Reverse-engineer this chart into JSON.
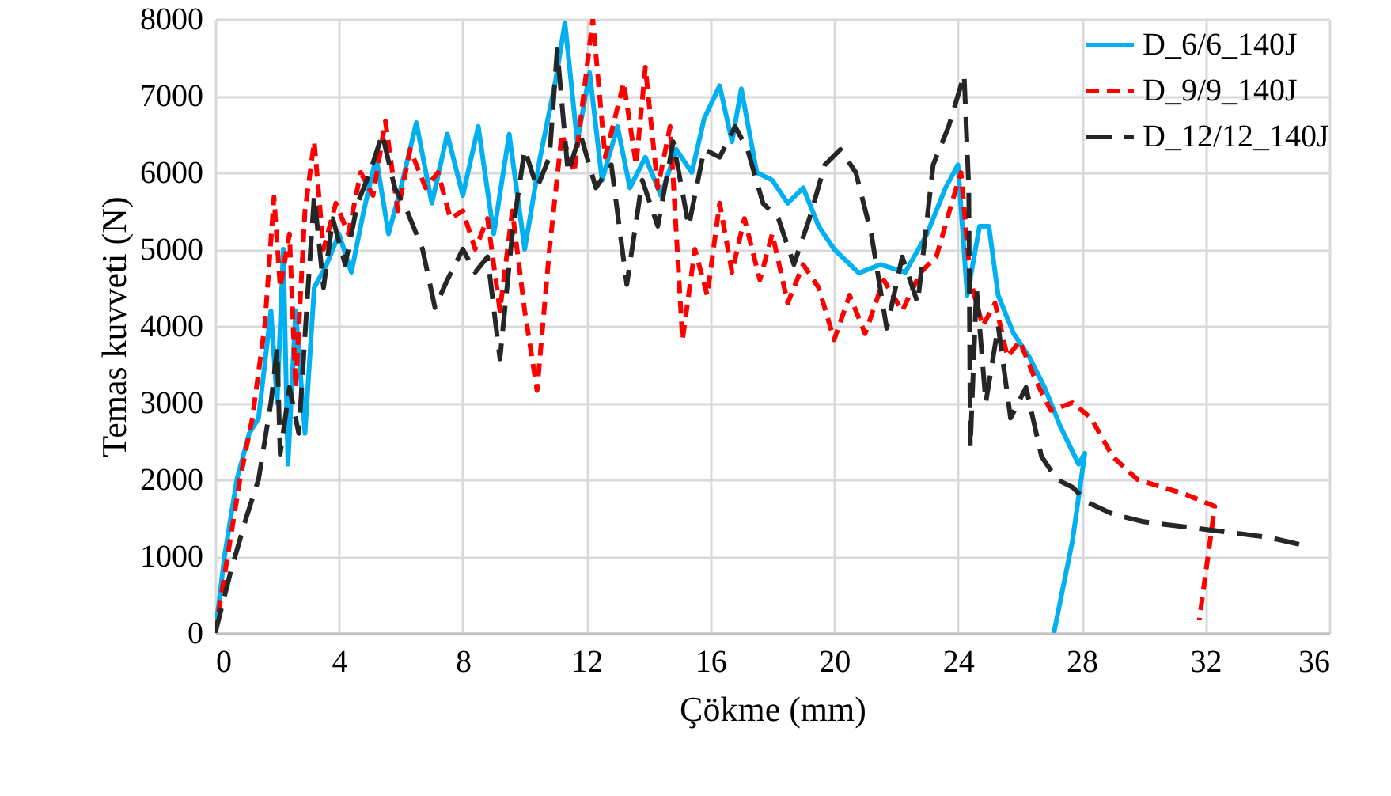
{
  "chart_data": {
    "type": "line",
    "xlabel": "Çökme (mm)",
    "ylabel": "Temas kuvveti (N)",
    "xlim": [
      0,
      36
    ],
    "xticks": [
      0,
      4,
      8,
      12,
      16,
      20,
      24,
      28,
      32,
      36
    ],
    "ylim": [
      0,
      8000
    ],
    "yticks": [
      0,
      1000,
      2000,
      3000,
      4000,
      5000,
      6000,
      7000,
      8000
    ],
    "grid": true,
    "legend": "top right",
    "marker": "none",
    "series": [
      {
        "name": "D_6/6_140J",
        "color": "#00b0f0",
        "line_style": "solid",
        "x": [
          0,
          0.3,
          0.7,
          1.1,
          1.4,
          1.8,
          2.0,
          2.2,
          2.35,
          2.6,
          2.9,
          3.2,
          3.6,
          4.0,
          4.4,
          4.8,
          5.2,
          5.6,
          6.0,
          6.5,
          7.0,
          7.5,
          8.0,
          8.5,
          9.0,
          9.5,
          10.0,
          10.5,
          11.0,
          11.3,
          11.7,
          12.1,
          12.5,
          13.0,
          13.4,
          13.9,
          14.4,
          14.9,
          15.4,
          15.8,
          16.3,
          16.7,
          17.0,
          17.5,
          18.0,
          18.5,
          19.0,
          19.5,
          20.0,
          20.8,
          21.5,
          22.3,
          23.0,
          23.6,
          24.0,
          24.3,
          24.7,
          25.0,
          25.3,
          25.8,
          26.3,
          26.8,
          27.3,
          27.9,
          28.1,
          27.7,
          27.1
        ],
        "values": [
          0,
          1000,
          2000,
          2600,
          2800,
          4200,
          3000,
          5000,
          2200,
          4200,
          2600,
          4500,
          4800,
          5200,
          4700,
          5500,
          6200,
          5200,
          5800,
          6650,
          5600,
          6500,
          5700,
          6600,
          5200,
          6500,
          5000,
          6200,
          7200,
          7950,
          6400,
          7300,
          5900,
          6600,
          5800,
          6200,
          5700,
          6300,
          6000,
          6700,
          7130,
          6400,
          7090,
          6000,
          5900,
          5600,
          5800,
          5300,
          5000,
          4690,
          4800,
          4700,
          5200,
          5800,
          6100,
          4400,
          5300,
          5300,
          4400,
          3900,
          3600,
          3200,
          2700,
          2200,
          2340,
          1200,
          0
        ]
      },
      {
        "name": "D_9/9_140J",
        "color": "#ff0000",
        "line_style": "dashed",
        "x": [
          0,
          0.4,
          0.8,
          1.2,
          1.6,
          1.9,
          2.1,
          2.4,
          2.6,
          2.9,
          3.2,
          3.5,
          3.9,
          4.3,
          4.7,
          5.1,
          5.5,
          5.9,
          6.3,
          6.8,
          7.2,
          7.6,
          8.0,
          8.4,
          8.8,
          9.2,
          9.6,
          10.0,
          10.4,
          10.8,
          11.2,
          11.6,
          12.2,
          12.6,
          13.2,
          13.6,
          13.9,
          14.3,
          14.7,
          15.1,
          15.5,
          15.9,
          16.3,
          16.7,
          17.1,
          17.6,
          18.0,
          18.5,
          19.0,
          19.5,
          20.0,
          20.5,
          21.0,
          21.6,
          22.2,
          22.8,
          23.3,
          23.8,
          24.1,
          24.4,
          24.8,
          25.2,
          25.6,
          26.0,
          26.5,
          27.0,
          27.7,
          28.3,
          29.0,
          29.8,
          30.6,
          31.4,
          32.3,
          31.8
        ],
        "values": [
          0,
          1000,
          2000,
          2800,
          4000,
          5680,
          4500,
          5200,
          3200,
          5500,
          6400,
          5000,
          5600,
          5200,
          6000,
          5700,
          6670,
          5500,
          6300,
          5800,
          6000,
          5400,
          5500,
          5000,
          5400,
          4200,
          5500,
          4200,
          3160,
          5000,
          6500,
          6000,
          8000,
          6200,
          7170,
          6100,
          7370,
          5800,
          6600,
          3820,
          5000,
          4400,
          5600,
          4700,
          5400,
          4600,
          5200,
          4300,
          4800,
          4500,
          3820,
          4400,
          3900,
          4600,
          4200,
          4700,
          4900,
          5600,
          6000,
          4600,
          4000,
          4300,
          3600,
          3800,
          3300,
          2900,
          3000,
          2800,
          2300,
          2000,
          1900,
          1800,
          1650,
          170
        ]
      },
      {
        "name": "D_12/12_140J",
        "color": "#262626",
        "line_style": "longdash",
        "x": [
          0,
          0.5,
          1.0,
          1.4,
          1.8,
          2.0,
          2.1,
          2.4,
          2.7,
          3.0,
          3.2,
          3.5,
          3.8,
          4.2,
          4.6,
          5.0,
          5.4,
          5.8,
          6.2,
          6.7,
          7.1,
          7.5,
          8.0,
          8.4,
          8.8,
          9.2,
          9.6,
          10.0,
          10.4,
          10.8,
          11.05,
          11.4,
          11.8,
          12.3,
          12.8,
          13.3,
          13.8,
          14.3,
          14.8,
          15.3,
          15.8,
          16.3,
          16.8,
          17.2,
          17.7,
          18.2,
          18.7,
          19.2,
          19.7,
          20.2,
          20.7,
          21.2,
          21.7,
          22.2,
          22.7,
          23.2,
          23.7,
          24.2,
          24.35,
          24.4,
          24.6,
          24.9,
          25.3,
          25.7,
          26.2,
          26.7,
          27.2,
          27.7,
          28.2,
          29.0,
          30.0,
          31.0,
          32.0,
          33.0,
          34.0,
          35.2
        ],
        "values": [
          0,
          800,
          1500,
          2000,
          3000,
          3700,
          2330,
          3200,
          2600,
          4500,
          5700,
          4500,
          5400,
          4800,
          5600,
          6000,
          6500,
          5800,
          5500,
          5000,
          4240,
          4600,
          5000,
          4700,
          4900,
          3570,
          5200,
          6300,
          5800,
          6200,
          7600,
          6000,
          6500,
          5800,
          6100,
          4540,
          5900,
          5300,
          6400,
          5300,
          6300,
          6200,
          6600,
          6300,
          5600,
          5400,
          4800,
          5400,
          6100,
          6300,
          6000,
          5200,
          3970,
          4900,
          4300,
          6100,
          6600,
          7270,
          5800,
          2420,
          4500,
          3000,
          4000,
          2800,
          3200,
          2300,
          2000,
          1900,
          1700,
          1550,
          1450,
          1400,
          1350,
          1300,
          1250,
          1140
        ]
      }
    ]
  }
}
